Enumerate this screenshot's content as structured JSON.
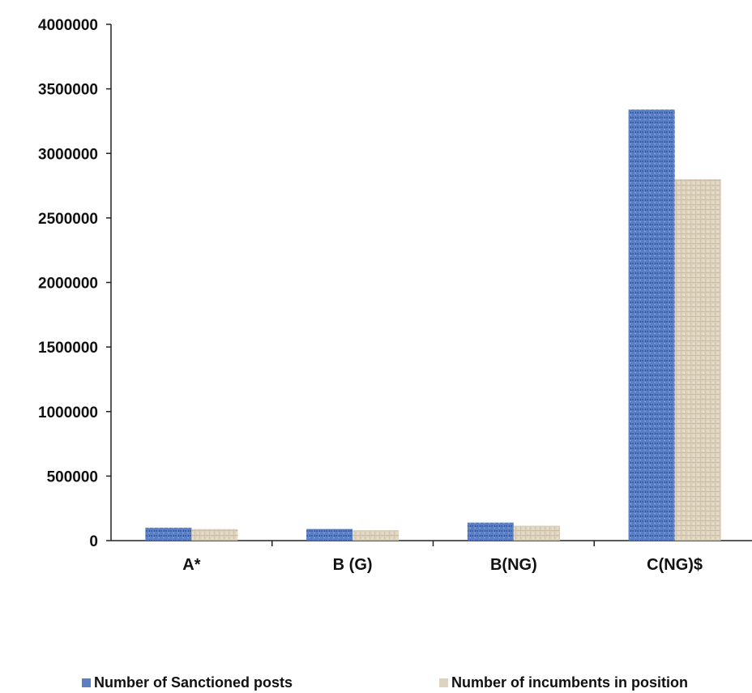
{
  "chart_data": {
    "type": "bar",
    "categories": [
      "A*",
      "B (G)",
      "B(NG)",
      "C(NG)$"
    ],
    "series": [
      {
        "name": "Number of Sanctioned posts",
        "values": [
          100000,
          90000,
          140000,
          3340000
        ]
      },
      {
        "name": "Number of incumbents in position",
        "values": [
          90000,
          80000,
          115000,
          2800000
        ]
      }
    ],
    "y_ticks": [
      "0",
      "500000",
      "1000000",
      "1500000",
      "2000000",
      "2500000",
      "3000000",
      "3500000",
      "4000000"
    ],
    "ylim": [
      0,
      4000000
    ],
    "grid": false,
    "legend_position": "bottom",
    "colors": {
      "series1": "#5b7fc4",
      "series2": "#ddd3bf"
    }
  }
}
